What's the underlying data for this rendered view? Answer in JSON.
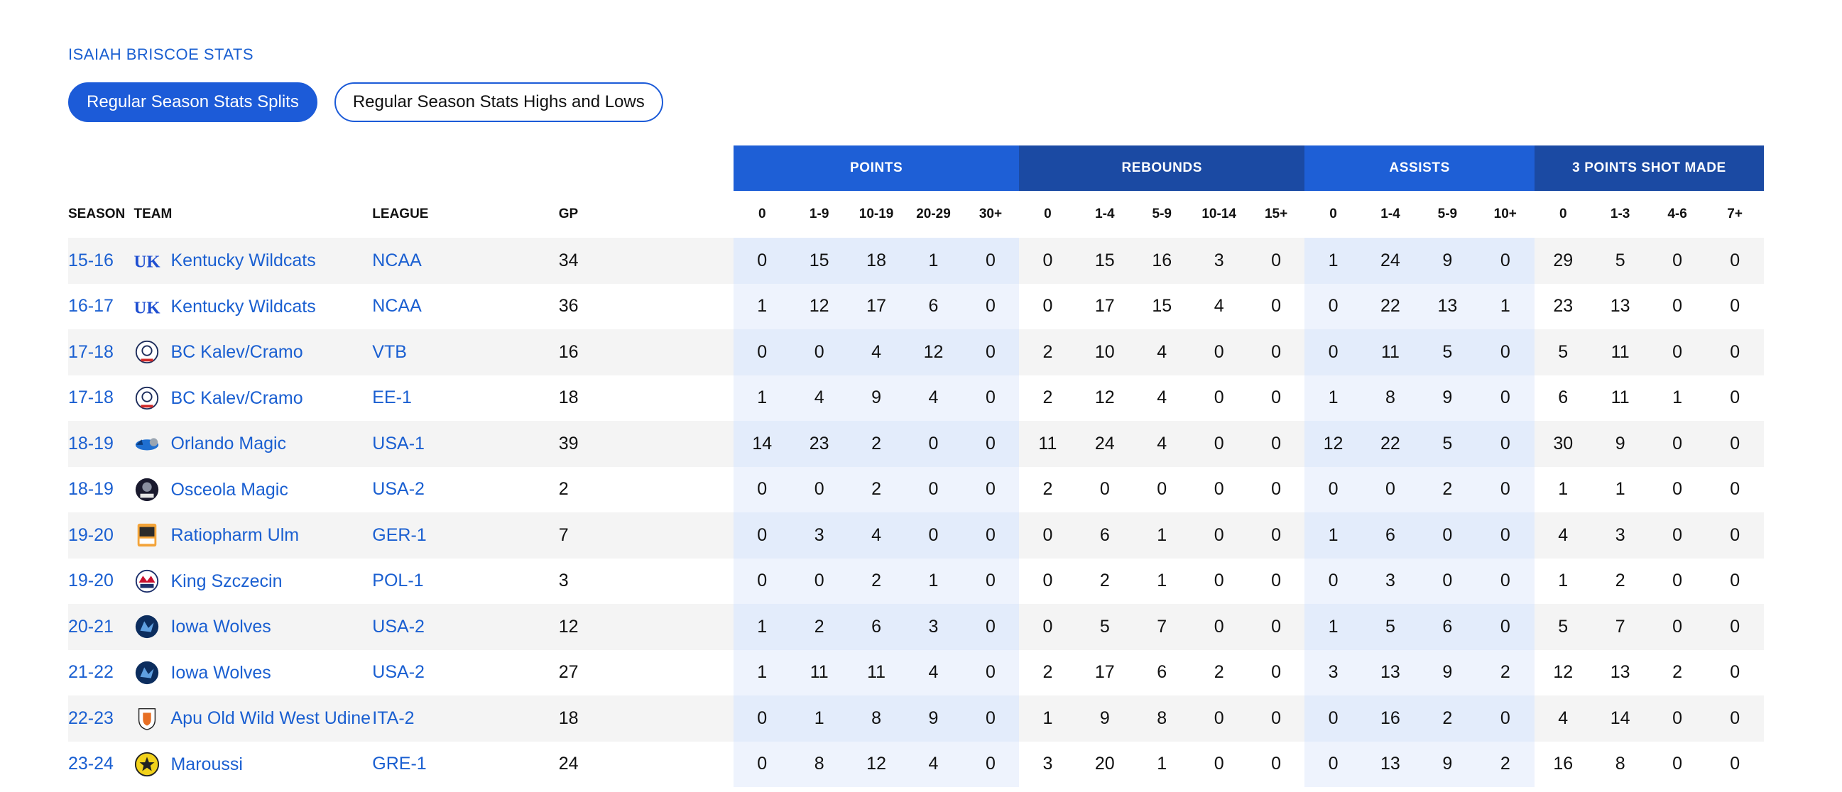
{
  "page": {
    "title": "ISAIAH BRISCOE STATS"
  },
  "buttons": {
    "splits": "Regular Season Stats Splits",
    "highs_lows": "Regular Season Stats Highs and Lows"
  },
  "groups": {
    "points": "POINTS",
    "rebounds": "REBOUNDS",
    "assists": "ASSISTS",
    "threes": "3 POINTS SHOT MADE"
  },
  "columns": {
    "season": "SEASON",
    "team": "TEAM",
    "league": "LEAGUE",
    "gp": "GP",
    "points": [
      "0",
      "1-9",
      "10-19",
      "20-29",
      "30+"
    ],
    "rebounds": [
      "0",
      "1-4",
      "5-9",
      "10-14",
      "15+"
    ],
    "assists": [
      "0",
      "1-4",
      "5-9",
      "10+"
    ],
    "threes": [
      "0",
      "1-3",
      "4-6",
      "7+"
    ]
  },
  "rows": [
    {
      "season": "15-16",
      "team": "Kentucky Wildcats",
      "logo": "kentucky-logo-icon",
      "league": "NCAA",
      "gp": "34",
      "points": [
        "0",
        "15",
        "18",
        "1",
        "0"
      ],
      "rebounds": [
        "0",
        "15",
        "16",
        "3",
        "0"
      ],
      "assists": [
        "1",
        "24",
        "9",
        "0"
      ],
      "threes": [
        "29",
        "5",
        "0",
        "0"
      ]
    },
    {
      "season": "16-17",
      "team": "Kentucky Wildcats",
      "logo": "kentucky-logo-icon",
      "league": "NCAA",
      "gp": "36",
      "points": [
        "1",
        "12",
        "17",
        "6",
        "0"
      ],
      "rebounds": [
        "0",
        "17",
        "15",
        "4",
        "0"
      ],
      "assists": [
        "0",
        "22",
        "13",
        "1"
      ],
      "threes": [
        "23",
        "13",
        "0",
        "0"
      ]
    },
    {
      "season": "17-18",
      "team": "BC Kalev/Cramo",
      "logo": "kalev-logo-icon",
      "league": "VTB",
      "gp": "16",
      "points": [
        "0",
        "0",
        "4",
        "12",
        "0"
      ],
      "rebounds": [
        "2",
        "10",
        "4",
        "0",
        "0"
      ],
      "assists": [
        "0",
        "11",
        "5",
        "0"
      ],
      "threes": [
        "5",
        "11",
        "0",
        "0"
      ]
    },
    {
      "season": "17-18",
      "team": "BC Kalev/Cramo",
      "logo": "kalev-logo-icon",
      "league": "EE-1",
      "gp": "18",
      "points": [
        "1",
        "4",
        "9",
        "4",
        "0"
      ],
      "rebounds": [
        "2",
        "12",
        "4",
        "0",
        "0"
      ],
      "assists": [
        "1",
        "8",
        "9",
        "0"
      ],
      "threes": [
        "6",
        "11",
        "1",
        "0"
      ]
    },
    {
      "season": "18-19",
      "team": "Orlando Magic",
      "logo": "orlando-logo-icon",
      "league": "USA-1",
      "gp": "39",
      "points": [
        "14",
        "23",
        "2",
        "0",
        "0"
      ],
      "rebounds": [
        "11",
        "24",
        "4",
        "0",
        "0"
      ],
      "assists": [
        "12",
        "22",
        "5",
        "0"
      ],
      "threes": [
        "30",
        "9",
        "0",
        "0"
      ]
    },
    {
      "season": "18-19",
      "team": "Osceola Magic",
      "logo": "osceola-logo-icon",
      "league": "USA-2",
      "gp": "2",
      "points": [
        "0",
        "0",
        "2",
        "0",
        "0"
      ],
      "rebounds": [
        "2",
        "0",
        "0",
        "0",
        "0"
      ],
      "assists": [
        "0",
        "0",
        "2",
        "0"
      ],
      "threes": [
        "1",
        "1",
        "0",
        "0"
      ]
    },
    {
      "season": "19-20",
      "team": "Ratiopharm Ulm",
      "logo": "ulm-logo-icon",
      "league": "GER-1",
      "gp": "7",
      "points": [
        "0",
        "3",
        "4",
        "0",
        "0"
      ],
      "rebounds": [
        "0",
        "6",
        "1",
        "0",
        "0"
      ],
      "assists": [
        "1",
        "6",
        "0",
        "0"
      ],
      "threes": [
        "4",
        "3",
        "0",
        "0"
      ]
    },
    {
      "season": "19-20",
      "team": "King Szczecin",
      "logo": "king-logo-icon",
      "league": "POL-1",
      "gp": "3",
      "points": [
        "0",
        "0",
        "2",
        "1",
        "0"
      ],
      "rebounds": [
        "0",
        "2",
        "1",
        "0",
        "0"
      ],
      "assists": [
        "0",
        "3",
        "0",
        "0"
      ],
      "threes": [
        "1",
        "2",
        "0",
        "0"
      ]
    },
    {
      "season": "20-21",
      "team": "Iowa Wolves",
      "logo": "iowa-logo-icon",
      "league": "USA-2",
      "gp": "12",
      "points": [
        "1",
        "2",
        "6",
        "3",
        "0"
      ],
      "rebounds": [
        "0",
        "5",
        "7",
        "0",
        "0"
      ],
      "assists": [
        "1",
        "5",
        "6",
        "0"
      ],
      "threes": [
        "5",
        "7",
        "0",
        "0"
      ]
    },
    {
      "season": "21-22",
      "team": "Iowa Wolves",
      "logo": "iowa-logo-icon",
      "league": "USA-2",
      "gp": "27",
      "points": [
        "1",
        "11",
        "11",
        "4",
        "0"
      ],
      "rebounds": [
        "2",
        "17",
        "6",
        "2",
        "0"
      ],
      "assists": [
        "3",
        "13",
        "9",
        "2"
      ],
      "threes": [
        "12",
        "13",
        "2",
        "0"
      ]
    },
    {
      "season": "22-23",
      "team": "Apu Old Wild West Udine",
      "logo": "udine-logo-icon",
      "league": "ITA-2",
      "gp": "18",
      "points": [
        "0",
        "1",
        "8",
        "9",
        "0"
      ],
      "rebounds": [
        "1",
        "9",
        "8",
        "0",
        "0"
      ],
      "assists": [
        "0",
        "16",
        "2",
        "0"
      ],
      "threes": [
        "4",
        "14",
        "0",
        "0"
      ]
    },
    {
      "season": "23-24",
      "team": "Maroussi",
      "logo": "maroussi-logo-icon",
      "league": "GRE-1",
      "gp": "24",
      "points": [
        "0",
        "8",
        "12",
        "4",
        "0"
      ],
      "rebounds": [
        "3",
        "20",
        "1",
        "0",
        "0"
      ],
      "assists": [
        "0",
        "13",
        "9",
        "2"
      ],
      "threes": [
        "16",
        "8",
        "0",
        "0"
      ]
    }
  ]
}
